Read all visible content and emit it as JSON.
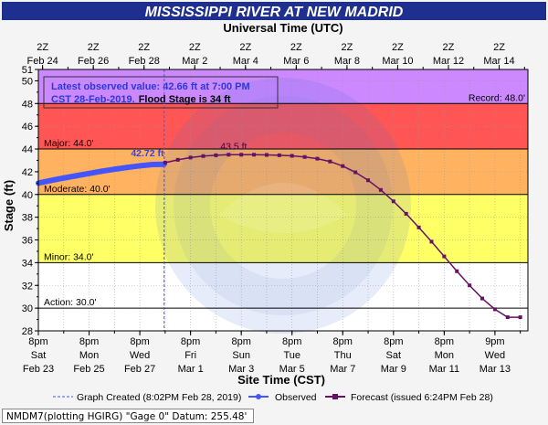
{
  "header": {
    "title": "MISSISSIPPI RIVER AT NEW MADRID",
    "top_axis_title": "Universal Time (UTC)"
  },
  "colors": {
    "title_bg": "#1f2f8f",
    "record_band": "#cc88ff",
    "major_band": "#ff5555",
    "moderate_band": "#ffb360",
    "minor_band": "#ffff66",
    "action_band": "#ffffff",
    "observed": "#4455ff",
    "forecast": "#661166",
    "observed_label": "#3344ee",
    "forecast_label": "#440044"
  },
  "info_box": {
    "line1": "Latest observed value: 42.66 ft at 7:00 PM",
    "line2_blue": "CST 28-Feb-2019.",
    "line2_black": "Flood Stage is 34 ft"
  },
  "legend": {
    "graph_created": "Graph Created (8:02PM Feb 28, 2019)",
    "observed": "Observed",
    "forecast": "Forecast (issued 6:24PM Feb 28)"
  },
  "footer": {
    "gauge_info": "NMDM7(plotting HGIRG) \"Gage 0\" Datum: 255.48'"
  },
  "chart_data": {
    "type": "line",
    "title": "MISSISSIPPI RIVER AT NEW MADRID",
    "xlabel": "Site Time (CST)",
    "ylabel": "Stage (ft)",
    "top_xlabel": "Universal Time (UTC)",
    "x_unit": "days since 8pm CST Feb 23, 2019",
    "xlim": [
      0,
      19.3
    ],
    "ylim": [
      28,
      51
    ],
    "y_ticks": [
      28,
      30,
      32,
      34,
      36,
      38,
      40,
      42,
      44,
      46,
      48,
      50,
      51
    ],
    "bottom_ticks": [
      {
        "x": 0,
        "time": "8pm",
        "day": "Sat",
        "date": "Feb 23"
      },
      {
        "x": 2,
        "time": "8pm",
        "day": "Mon",
        "date": "Feb 25"
      },
      {
        "x": 4,
        "time": "8pm",
        "day": "Wed",
        "date": "Feb 27"
      },
      {
        "x": 6,
        "time": "8pm",
        "day": "Fri",
        "date": "Mar 1"
      },
      {
        "x": 8,
        "time": "8pm",
        "day": "Sun",
        "date": "Mar 3"
      },
      {
        "x": 10,
        "time": "8pm",
        "day": "Tue",
        "date": "Mar 5"
      },
      {
        "x": 12,
        "time": "8pm",
        "day": "Thu",
        "date": "Mar 7"
      },
      {
        "x": 14,
        "time": "8pm",
        "day": "Sat",
        "date": "Mar 9"
      },
      {
        "x": 16,
        "time": "8pm",
        "day": "Mon",
        "date": "Mar 11"
      },
      {
        "x": 18,
        "time": "9pm",
        "day": "Wed",
        "date": "Mar 13"
      }
    ],
    "top_ticks": [
      {
        "x": 0.1667,
        "time": "2Z",
        "date": "Feb 24"
      },
      {
        "x": 2.1667,
        "time": "2Z",
        "date": "Feb 26"
      },
      {
        "x": 4.1667,
        "time": "2Z",
        "date": "Feb 28"
      },
      {
        "x": 6.1667,
        "time": "2Z",
        "date": "Mar  2"
      },
      {
        "x": 8.1667,
        "time": "2Z",
        "date": "Mar  4"
      },
      {
        "x": 10.1667,
        "time": "2Z",
        "date": "Mar  6"
      },
      {
        "x": 12.1667,
        "time": "2Z",
        "date": "Mar  8"
      },
      {
        "x": 14.1667,
        "time": "2Z",
        "date": "Mar 10"
      },
      {
        "x": 16.1667,
        "time": "2Z",
        "date": "Mar 12"
      },
      {
        "x": 18.1667,
        "time": "2Z",
        "date": "Mar 14"
      }
    ],
    "flood_categories": [
      {
        "name": "Record",
        "label": "Record: 48.0'",
        "stage": 48.0,
        "color": "#cc88ff"
      },
      {
        "name": "Major",
        "label": "Major: 44.0'",
        "stage": 44.0,
        "color": "#ff5555"
      },
      {
        "name": "Moderate",
        "label": "Moderate: 40.0'",
        "stage": 40.0,
        "color": "#ffb360"
      },
      {
        "name": "Minor",
        "label": "Minor: 34.0'",
        "stage": 34.0,
        "color": "#ffff66"
      },
      {
        "name": "Action",
        "label": "Action: 30.0'",
        "stage": 30.0,
        "color": "#ffffff"
      }
    ],
    "graph_created_x": 4.96,
    "series": [
      {
        "name": "Observed",
        "color": "#4455ff",
        "peak_label": "42.72 ft",
        "x": [
          0,
          0.5,
          1,
          1.5,
          2,
          2.5,
          3,
          3.5,
          4,
          4.5,
          4.96
        ],
        "y": [
          41.0,
          41.23,
          41.45,
          41.65,
          41.85,
          42.05,
          42.22,
          42.38,
          42.52,
          42.64,
          42.66
        ]
      },
      {
        "name": "Forecast",
        "color": "#661166",
        "peak_label": "43.5 ft",
        "x": [
          5.0,
          5.5,
          6.0,
          6.5,
          7.0,
          7.5,
          8.0,
          8.5,
          9.0,
          9.5,
          10.0,
          10.5,
          11.0,
          11.5,
          12.0,
          12.5,
          13.0,
          13.5,
          14.0,
          14.5,
          15.0,
          15.5,
          16.0,
          16.5,
          17.0,
          17.5,
          18.0,
          18.5,
          19.0
        ],
        "y": [
          42.8,
          43.05,
          43.25,
          43.38,
          43.45,
          43.5,
          43.5,
          43.5,
          43.48,
          43.45,
          43.4,
          43.3,
          43.15,
          42.9,
          42.5,
          41.95,
          41.25,
          40.4,
          39.4,
          38.3,
          37.1,
          35.85,
          34.55,
          33.25,
          32.0,
          30.85,
          29.9,
          29.2,
          29.2
        ]
      }
    ]
  }
}
